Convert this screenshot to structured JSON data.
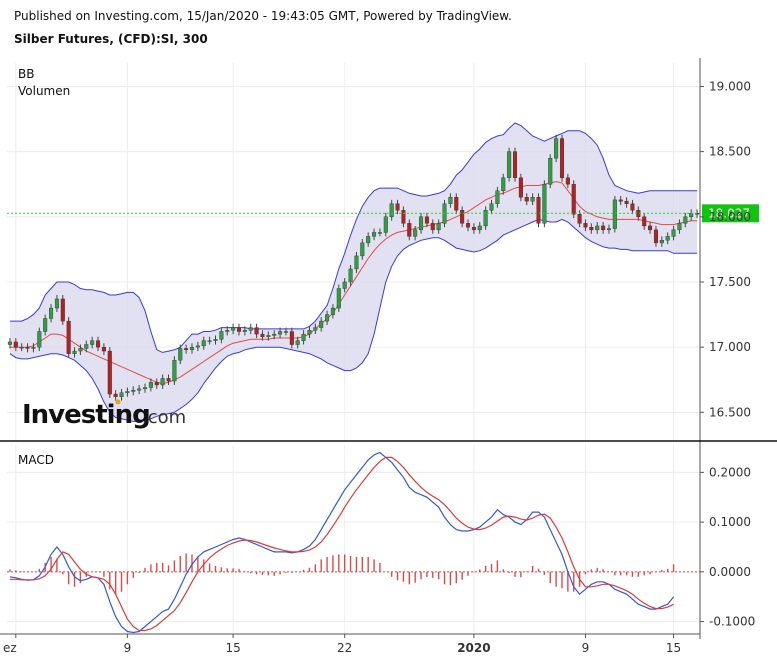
{
  "header": {
    "published": "Published on Investing.com, 15/Jan/2020 - 19:43:05 GMT, Powered by TradingView.",
    "symbol": "Silber Futures, (CFD):SI, 300"
  },
  "colors": {
    "up": "#2ea043",
    "down": "#b22222",
    "band_fill": "#d9d9ee",
    "band_line": "#3a3ae0",
    "basis_line": "#e24a4a",
    "macd_line": "#2f5bd6",
    "signal_line": "#e03a3a",
    "hist": "#e04848",
    "last_price_line": "#2ad12a",
    "last_price_badge": "#12c412"
  },
  "chart_data": [
    {
      "type": "candlestick",
      "panel": "price",
      "legend": [
        "BB",
        "Volumen"
      ],
      "ylim": [
        16.28,
        19.18
      ],
      "yticks": [
        "16.500",
        "17.000",
        "17.500",
        "18.000",
        "18.500",
        "19.000"
      ],
      "ytick_values": [
        16.5,
        17.0,
        17.5,
        18.0,
        18.5,
        19.0
      ],
      "last_price": "18.027",
      "last_price_value": 18.027,
      "xlabels": [
        "ez",
        "9",
        "15",
        "22",
        "2020",
        "9",
        "15"
      ],
      "xlabel_positions": [
        1,
        20,
        38,
        57,
        79,
        98,
        113
      ],
      "n": 118,
      "close": [
        17.04,
        17.0,
        17.0,
        16.99,
        17.0,
        17.12,
        17.22,
        17.3,
        17.37,
        17.2,
        16.95,
        16.97,
        16.99,
        17.02,
        17.05,
        17.0,
        16.97,
        16.64,
        16.62,
        16.65,
        16.66,
        16.67,
        16.68,
        16.69,
        16.73,
        16.71,
        16.76,
        16.74,
        16.9,
        16.99,
        16.98,
        17.0,
        17.01,
        17.05,
        17.05,
        17.06,
        17.12,
        17.13,
        17.15,
        17.12,
        17.13,
        17.15,
        17.1,
        17.08,
        17.09,
        17.1,
        17.12,
        17.12,
        17.02,
        17.05,
        17.1,
        17.13,
        17.15,
        17.2,
        17.25,
        17.3,
        17.45,
        17.5,
        17.6,
        17.7,
        17.8,
        17.85,
        17.88,
        17.88,
        18.0,
        18.1,
        18.05,
        17.95,
        17.85,
        17.9,
        18.0,
        17.95,
        17.9,
        17.95,
        18.1,
        18.15,
        18.05,
        17.95,
        17.92,
        17.9,
        17.93,
        18.05,
        18.1,
        18.2,
        18.3,
        18.5,
        18.3,
        18.15,
        18.12,
        18.15,
        17.95,
        18.25,
        18.45,
        18.6,
        18.3,
        18.25,
        18.02,
        17.95,
        17.92,
        17.9,
        17.93,
        17.9,
        17.91,
        18.13,
        18.12,
        18.1,
        18.05,
        18.0,
        17.93,
        17.9,
        17.8,
        17.82,
        17.85,
        17.9,
        17.95,
        18.0,
        18.027,
        18.02
      ],
      "bands": {
        "upper": [
          17.2,
          17.2,
          17.2,
          17.22,
          17.25,
          17.3,
          17.4,
          17.45,
          17.5,
          17.5,
          17.5,
          17.48,
          17.45,
          17.44,
          17.44,
          17.43,
          17.42,
          17.4,
          17.4,
          17.41,
          17.42,
          17.42,
          17.38,
          17.28,
          17.12,
          16.98,
          16.96,
          16.97,
          16.98,
          17.0,
          17.05,
          17.1,
          17.1,
          17.12,
          17.12,
          17.13,
          17.15,
          17.15,
          17.15,
          17.15,
          17.15,
          17.14,
          17.14,
          17.14,
          17.14,
          17.14,
          17.14,
          17.14,
          17.14,
          17.14,
          17.14,
          17.16,
          17.2,
          17.26,
          17.32,
          17.45,
          17.6,
          17.72,
          17.86,
          17.98,
          18.08,
          18.15,
          18.2,
          18.22,
          18.22,
          18.22,
          18.22,
          18.2,
          18.18,
          18.17,
          18.16,
          18.16,
          18.17,
          18.18,
          18.2,
          18.25,
          18.32,
          18.36,
          18.42,
          18.48,
          18.52,
          18.57,
          18.6,
          18.62,
          18.63,
          18.68,
          18.72,
          18.7,
          18.66,
          18.62,
          18.6,
          18.58,
          18.6,
          18.62,
          18.64,
          18.66,
          18.66,
          18.66,
          18.64,
          18.6,
          18.55,
          18.45,
          18.32,
          18.24,
          18.22,
          18.2,
          18.19,
          18.18,
          18.19,
          18.2,
          18.2,
          18.2,
          18.2,
          18.2,
          18.2,
          18.2,
          18.2,
          18.2
        ],
        "basis": [
          17.0,
          17.0,
          17.0,
          17.0,
          17.01,
          17.04,
          17.07,
          17.1,
          17.1,
          17.09,
          17.06,
          17.03,
          17.0,
          16.97,
          16.95,
          16.93,
          16.91,
          16.89,
          16.87,
          16.85,
          16.83,
          16.81,
          16.79,
          16.77,
          16.75,
          16.73,
          16.72,
          16.73,
          16.75,
          16.77,
          16.8,
          16.83,
          16.86,
          16.89,
          16.92,
          16.95,
          16.98,
          17.01,
          17.03,
          17.04,
          17.05,
          17.06,
          17.06,
          17.06,
          17.06,
          17.07,
          17.07,
          17.07,
          17.07,
          17.07,
          17.08,
          17.1,
          17.14,
          17.18,
          17.22,
          17.26,
          17.33,
          17.4,
          17.47,
          17.54,
          17.61,
          17.68,
          17.74,
          17.79,
          17.83,
          17.86,
          17.88,
          17.89,
          17.9,
          17.91,
          17.92,
          17.93,
          17.94,
          17.95,
          17.96,
          17.98,
          18.0,
          18.02,
          18.04,
          18.07,
          18.1,
          18.13,
          18.15,
          18.17,
          18.18,
          18.2,
          18.22,
          18.23,
          18.24,
          18.24,
          18.24,
          18.25,
          18.26,
          18.27,
          18.26,
          18.2,
          18.14,
          18.08,
          18.04,
          18.02,
          18.0,
          17.99,
          17.98,
          17.98,
          17.98,
          17.98,
          17.98,
          17.98,
          17.97,
          17.96,
          17.95,
          17.94,
          17.94,
          17.94,
          17.95,
          17.96,
          17.97,
          17.97
        ],
        "lower": [
          16.95,
          16.92,
          16.91,
          16.91,
          16.92,
          16.93,
          16.94,
          16.95,
          16.95,
          16.94,
          16.92,
          16.9,
          16.86,
          16.82,
          16.76,
          16.68,
          16.58,
          16.5,
          16.46,
          16.45,
          16.44,
          16.43,
          16.43,
          16.44,
          16.45,
          16.47,
          16.48,
          16.49,
          16.5,
          16.53,
          16.56,
          16.6,
          16.65,
          16.72,
          16.78,
          16.84,
          16.89,
          16.93,
          16.95,
          16.96,
          16.98,
          16.99,
          17.0,
          17.0,
          17.0,
          17.0,
          17.0,
          16.99,
          16.98,
          16.97,
          16.96,
          16.95,
          16.93,
          16.91,
          16.88,
          16.86,
          16.84,
          16.82,
          16.82,
          16.84,
          16.88,
          16.95,
          17.1,
          17.3,
          17.5,
          17.62,
          17.7,
          17.75,
          17.78,
          17.8,
          17.82,
          17.83,
          17.84,
          17.84,
          17.82,
          17.79,
          17.76,
          17.75,
          17.74,
          17.73,
          17.74,
          17.76,
          17.79,
          17.82,
          17.86,
          17.88,
          17.9,
          17.92,
          17.94,
          17.96,
          17.98,
          17.97,
          17.96,
          17.96,
          17.98,
          17.96,
          17.92,
          17.88,
          17.84,
          17.81,
          17.79,
          17.77,
          17.76,
          17.76,
          17.75,
          17.75,
          17.74,
          17.74,
          17.74,
          17.74,
          17.74,
          17.74,
          17.74,
          17.72,
          17.72,
          17.72,
          17.72,
          17.72
        ]
      }
    },
    {
      "type": "line",
      "panel": "macd",
      "title": "MACD",
      "ylim": [
        -0.125,
        0.255
      ],
      "yticks": [
        "-0.1000",
        "0.0000",
        "0.1000",
        "0.2000"
      ],
      "ytick_values": [
        -0.1,
        0.0,
        0.1,
        0.2
      ],
      "series": [
        {
          "values": [
            -0.01,
            -0.012,
            -0.015,
            -0.017,
            -0.016,
            -0.008,
            0.01,
            0.035,
            0.05,
            0.035,
            0.01,
            -0.01,
            -0.018,
            -0.015,
            -0.01,
            -0.012,
            -0.025,
            -0.06,
            -0.09,
            -0.11,
            -0.12,
            -0.122,
            -0.12,
            -0.11,
            -0.1,
            -0.09,
            -0.08,
            -0.075,
            -0.055,
            -0.03,
            -0.005,
            0.015,
            0.03,
            0.04,
            0.045,
            0.05,
            0.055,
            0.06,
            0.065,
            0.068,
            0.065,
            0.06,
            0.055,
            0.05,
            0.045,
            0.04,
            0.04,
            0.04,
            0.038,
            0.04,
            0.045,
            0.052,
            0.065,
            0.085,
            0.105,
            0.125,
            0.145,
            0.165,
            0.18,
            0.195,
            0.21,
            0.225,
            0.235,
            0.24,
            0.23,
            0.22,
            0.205,
            0.19,
            0.17,
            0.16,
            0.155,
            0.15,
            0.14,
            0.13,
            0.11,
            0.095,
            0.085,
            0.082,
            0.082,
            0.085,
            0.09,
            0.1,
            0.11,
            0.125,
            0.115,
            0.11,
            0.1,
            0.095,
            0.105,
            0.12,
            0.12,
            0.11,
            0.085,
            0.06,
            0.035,
            0.0,
            -0.03,
            -0.045,
            -0.035,
            -0.025,
            -0.02,
            -0.02,
            -0.025,
            -0.035,
            -0.04,
            -0.045,
            -0.055,
            -0.065,
            -0.07,
            -0.075,
            -0.075,
            -0.07,
            -0.065,
            -0.05
          ]
        },
        {
          "values": [
            -0.015,
            -0.015,
            -0.016,
            -0.016,
            -0.016,
            -0.014,
            -0.008,
            0.005,
            0.025,
            0.04,
            0.035,
            0.02,
            0.005,
            -0.005,
            -0.01,
            -0.012,
            -0.015,
            -0.025,
            -0.045,
            -0.07,
            -0.095,
            -0.11,
            -0.118,
            -0.118,
            -0.115,
            -0.108,
            -0.098,
            -0.088,
            -0.078,
            -0.062,
            -0.042,
            -0.02,
            0.0,
            0.015,
            0.028,
            0.038,
            0.046,
            0.053,
            0.058,
            0.062,
            0.064,
            0.063,
            0.06,
            0.056,
            0.052,
            0.048,
            0.045,
            0.042,
            0.04,
            0.04,
            0.041,
            0.044,
            0.05,
            0.06,
            0.075,
            0.092,
            0.11,
            0.13,
            0.148,
            0.165,
            0.18,
            0.195,
            0.21,
            0.222,
            0.23,
            0.23,
            0.222,
            0.21,
            0.195,
            0.182,
            0.17,
            0.16,
            0.152,
            0.145,
            0.135,
            0.122,
            0.108,
            0.098,
            0.09,
            0.086,
            0.085,
            0.088,
            0.094,
            0.102,
            0.11,
            0.112,
            0.11,
            0.106,
            0.104,
            0.108,
            0.114,
            0.116,
            0.108,
            0.09,
            0.068,
            0.04,
            0.01,
            -0.015,
            -0.03,
            -0.03,
            -0.028,
            -0.025,
            -0.025,
            -0.028,
            -0.033,
            -0.038,
            -0.045,
            -0.055,
            -0.063,
            -0.07,
            -0.074,
            -0.074,
            -0.071,
            -0.065
          ]
        }
      ],
      "histogram": [
        0.005,
        0.003,
        0.001,
        -0.001,
        0.0,
        0.006,
        0.018,
        0.03,
        0.025,
        -0.005,
        -0.025,
        -0.03,
        -0.023,
        -0.01,
        0.0,
        0.0,
        -0.01,
        -0.035,
        -0.045,
        -0.04,
        -0.025,
        -0.012,
        -0.002,
        0.008,
        0.015,
        0.018,
        0.018,
        0.013,
        0.023,
        0.032,
        0.037,
        0.035,
        0.03,
        0.025,
        0.017,
        0.012,
        0.009,
        0.007,
        0.007,
        0.006,
        0.001,
        -0.003,
        -0.005,
        -0.006,
        -0.007,
        -0.008,
        -0.005,
        -0.002,
        -0.002,
        0.0,
        0.004,
        0.008,
        0.015,
        0.025,
        0.03,
        0.033,
        0.035,
        0.035,
        0.032,
        0.03,
        0.03,
        0.03,
        0.025,
        0.018,
        0.0,
        -0.01,
        -0.017,
        -0.02,
        -0.025,
        -0.022,
        -0.015,
        -0.01,
        -0.012,
        -0.015,
        -0.025,
        -0.027,
        -0.023,
        -0.016,
        -0.008,
        -0.001,
        0.005,
        0.012,
        0.016,
        0.023,
        0.005,
        -0.002,
        -0.01,
        -0.011,
        0.001,
        0.012,
        0.006,
        -0.006,
        -0.023,
        -0.03,
        -0.033,
        -0.04,
        -0.04,
        -0.03,
        -0.005,
        0.005,
        0.008,
        0.005,
        0.0,
        -0.007,
        -0.007,
        -0.007,
        -0.01,
        -0.01,
        -0.007,
        -0.005,
        -0.001,
        0.004,
        0.006,
        0.015
      ]
    }
  ],
  "logo": {
    "word": "Investing",
    "suffix": ".com"
  }
}
